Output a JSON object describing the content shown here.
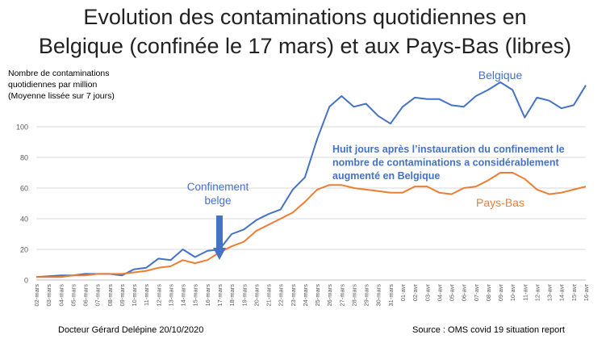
{
  "header": {
    "title_line1": "Evolution des contaminations quotidiennes en",
    "title_line2": "Belgique (confinée le 17 mars) et aux Pays-Bas (libres)"
  },
  "footer": {
    "author": "Docteur Gérard Delépine 20/10/2020",
    "source": "Source : OMS covid 19 situation report"
  },
  "chart_data": {
    "type": "line",
    "title": "Evolution des contaminations quotidiennes en Belgique (confinée le 17 mars) et aux Pays-Bas (libres)",
    "ylabel": [
      "Nombre de contaminations",
      "quotidiennes par million",
      "(Moyenne lissée sur 7 jours)"
    ],
    "xlabel": "",
    "ylim": [
      0,
      130
    ],
    "yticks": [
      0,
      20,
      40,
      60,
      80,
      100
    ],
    "grid": true,
    "categories": [
      "02-mars",
      "03-mars",
      "04-mars",
      "05-mars",
      "06-mars",
      "07-mars",
      "08-mars",
      "09-mars",
      "10-mars",
      "11-mars",
      "12-mars",
      "13-mars",
      "14-mars",
      "15-mars",
      "16-mars",
      "17-mars",
      "18-mars",
      "19-mars",
      "20-mars",
      "21-mars",
      "22-mars",
      "23-mars",
      "24-mars",
      "25-mars",
      "26-mars",
      "27-mars",
      "28-mars",
      "29-mars",
      "30-mars",
      "31-mars",
      "01-avr",
      "02-avr",
      "03-avr",
      "04-avr",
      "05-avr",
      "06-avr",
      "07-avr",
      "08-avr",
      "09-avr",
      "10-avr",
      "11-avr",
      "12-avr",
      "13-avr",
      "14-avr",
      "15-avr",
      "16-avr"
    ],
    "series": [
      {
        "name": "Belgique",
        "color": "#4472c4",
        "values": [
          2,
          2.5,
          3,
          3,
          4,
          4,
          4,
          3,
          7,
          8,
          14,
          13,
          20,
          15,
          19,
          20,
          30,
          33,
          39,
          43,
          46,
          59,
          67,
          92,
          113,
          120,
          113,
          115,
          107,
          102,
          113,
          119,
          118,
          118,
          114,
          113,
          120,
          124,
          129,
          124,
          106,
          119,
          117,
          112,
          114,
          127
        ]
      },
      {
        "name": "Pays-Bas",
        "color": "#ed7d31",
        "values": [
          2,
          2,
          2,
          3,
          3,
          4,
          4,
          4,
          5,
          6,
          8,
          9,
          13,
          11,
          13,
          18,
          22,
          25,
          32,
          36,
          40,
          44,
          51,
          59,
          62,
          62,
          60,
          59,
          58,
          57,
          57,
          61,
          61,
          57,
          56,
          60,
          61,
          65,
          70,
          70,
          66,
          59,
          56,
          57,
          59,
          61
        ]
      }
    ],
    "annotations": [
      {
        "text_lines": [
          "Confinement",
          "belge"
        ],
        "color": "#4472c4",
        "arrow_to": "17-mars"
      },
      {
        "text_lines": [
          "Huit jours après l’instauration du confinement le",
          "nombre de contaminations a considérablement",
          "augmenté en Belgique"
        ],
        "color": "#4472c4",
        "bold": true
      }
    ]
  }
}
